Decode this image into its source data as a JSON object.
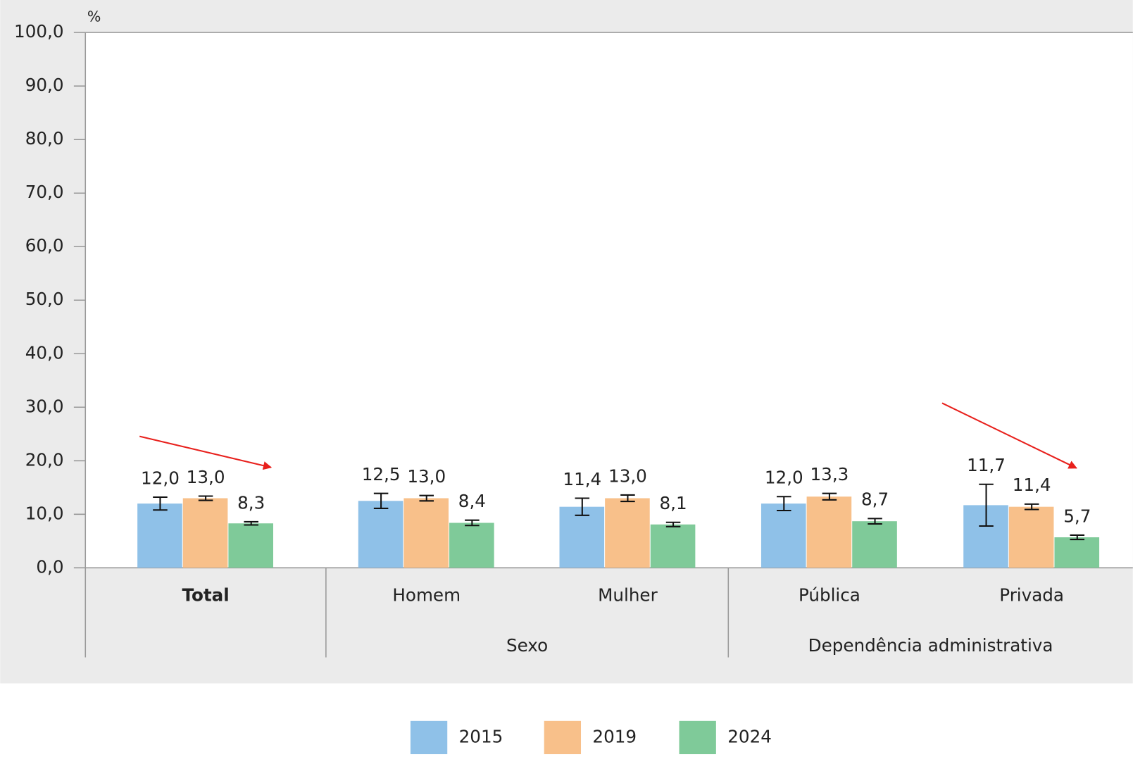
{
  "chart_data": {
    "type": "bar",
    "y_label": "%",
    "categories": [
      "Total",
      "Homem",
      "Mulher",
      "Pública",
      "Privada"
    ],
    "groups": [
      {
        "name": "Sexo",
        "members": [
          "Homem",
          "Mulher"
        ]
      },
      {
        "name": "Dependência administrativa",
        "members": [
          "Pública",
          "Privada"
        ]
      }
    ],
    "series": [
      {
        "name": "2015",
        "color": "#8fc1e8",
        "values": [
          12.0,
          12.5,
          11.4,
          12.0,
          11.7
        ],
        "value_labels": [
          "12,0",
          "12,5",
          "11,4",
          "12,0",
          "11,7"
        ],
        "errors": [
          1.2,
          1.4,
          1.6,
          1.3,
          3.9
        ]
      },
      {
        "name": "2019",
        "color": "#f8c08a",
        "values": [
          13.0,
          13.0,
          13.0,
          13.3,
          11.4
        ],
        "value_labels": [
          "13,0",
          "13,0",
          "13,0",
          "13,3",
          "11,4"
        ],
        "errors": [
          0.4,
          0.5,
          0.6,
          0.6,
          0.5
        ]
      },
      {
        "name": "2024",
        "color": "#7fca99",
        "values": [
          8.3,
          8.4,
          8.1,
          8.7,
          5.7
        ],
        "value_labels": [
          "8,3",
          "8,4",
          "8,1",
          "8,7",
          "5,7"
        ],
        "errors": [
          0.3,
          0.5,
          0.4,
          0.5,
          0.4
        ]
      }
    ],
    "ylim": [
      0,
      100
    ],
    "yticks": [
      {
        "value": 0,
        "label": "0,0"
      },
      {
        "value": 10,
        "label": "10,0"
      },
      {
        "value": 20,
        "label": "20,0"
      },
      {
        "value": 30,
        "label": "30,0"
      },
      {
        "value": 40,
        "label": "40,0"
      },
      {
        "value": 50,
        "label": "50,0"
      },
      {
        "value": 60,
        "label": "60,0"
      },
      {
        "value": 70,
        "label": "70,0"
      },
      {
        "value": 80,
        "label": "80,0"
      },
      {
        "value": 90,
        "label": "90,0"
      },
      {
        "value": 100,
        "label": "100,0"
      }
    ],
    "grid": false,
    "legend": "bottom"
  }
}
